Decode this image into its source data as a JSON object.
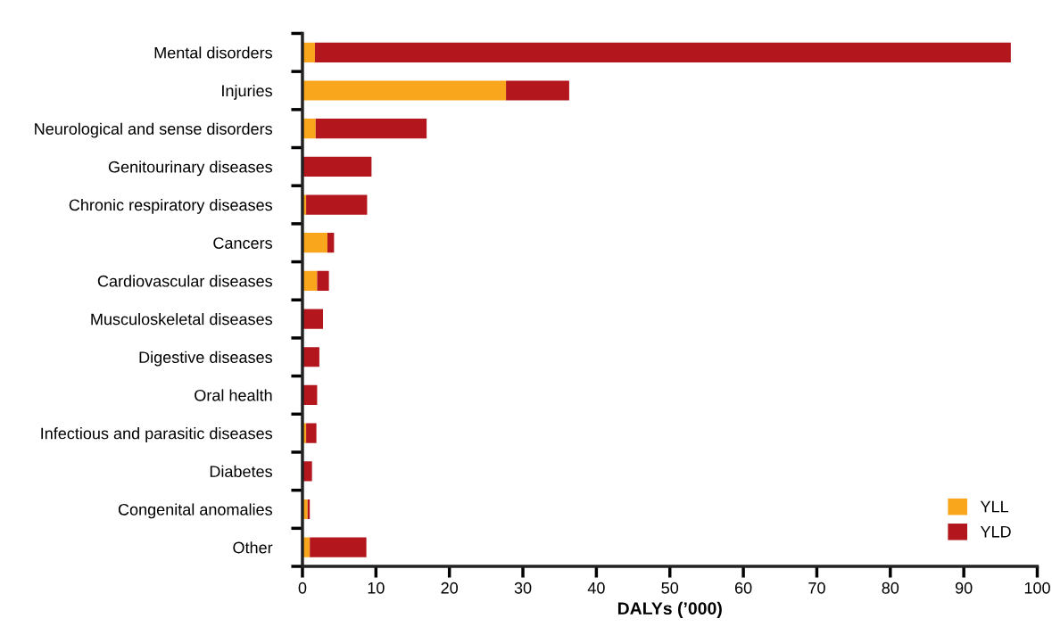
{
  "chart_data": {
    "type": "bar",
    "orientation": "horizontal",
    "stacked": true,
    "xlabel": "DALYs (’000)",
    "categories": [
      "Mental disorders",
      "Injuries",
      "Neurological and sense disorders",
      "Genitourinary diseases",
      "Chronic respiratory diseases",
      "Cancers",
      "Cardiovascular diseases",
      "Musculoskeletal diseases",
      "Digestive diseases",
      "Oral health",
      "Infectious and parasitic diseases",
      "Diabetes",
      "Congenital anomalies",
      "Other"
    ],
    "series": [
      {
        "name": "YLL",
        "color": "#f9a61d",
        "values": [
          1.7,
          27.7,
          1.8,
          0,
          0.5,
          3.4,
          2.0,
          0,
          0,
          0,
          0.5,
          0,
          0.7,
          1.0
        ]
      },
      {
        "name": "YLD",
        "color": "#b3161c",
        "values": [
          94.7,
          8.6,
          15.1,
          9.4,
          8.3,
          0.9,
          1.6,
          2.8,
          2.3,
          2.0,
          1.4,
          1.3,
          0.3,
          7.7
        ]
      }
    ],
    "xlim": [
      0,
      100
    ],
    "xticks": [
      0,
      10,
      20,
      30,
      40,
      50,
      60,
      70,
      80,
      90,
      100
    ],
    "grid": false,
    "legend": "bottom right"
  }
}
